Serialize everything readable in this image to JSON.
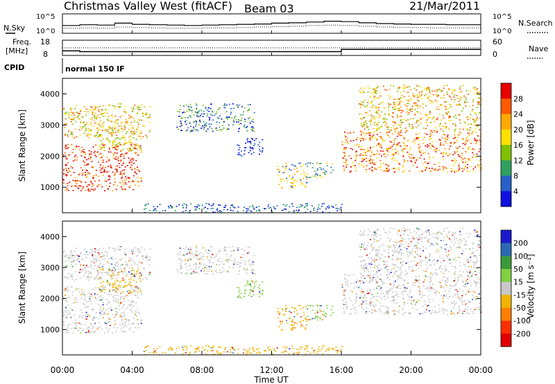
{
  "header": {
    "station": "Christmas Valley West (fitACF)",
    "beam": "Beam 03",
    "date": "21/Mar/2011"
  },
  "labels": {
    "nsky": "N.Sky",
    "nsearch": "N.Search",
    "freq": "Freq.",
    "freq_unit": "[MHz]",
    "nave": "Nave",
    "cpid": "CPID",
    "cpid_value": "normal 150 IF",
    "ylabel": "Slant Range [km]",
    "xlabel": "Time UT",
    "power_label": "Power [dB]",
    "velocity_label": "Velocity [m s⁻¹]"
  },
  "chart_data": [
    {
      "type": "line",
      "name": "noise",
      "left_ticks": [
        "10^5",
        "10^0"
      ],
      "right_ticks": [
        "10^5",
        "10^0"
      ],
      "series": [
        {
          "name": "N.Sky",
          "style": "solid",
          "values_log10": [
            2.0,
            2.2,
            2.1,
            2.6,
            2.3,
            2.2,
            2.1,
            2.0,
            2.1,
            2.2,
            2.3,
            2.4,
            2.6,
            2.7,
            2.9,
            3.1,
            3.0,
            2.7,
            2.5,
            2.4,
            2.3,
            2.3,
            2.2,
            2.2
          ]
        },
        {
          "name": "N.Search",
          "style": "dotted",
          "values_log10": [
            1.3,
            1.4,
            1.3,
            1.6,
            1.5,
            1.4,
            1.3,
            1.3,
            1.4,
            1.4,
            1.5,
            1.6,
            1.7,
            1.8,
            2.0,
            2.1,
            2.0,
            1.8,
            1.6,
            1.5,
            1.5,
            1.4,
            1.4,
            1.4
          ]
        }
      ]
    },
    {
      "type": "line",
      "name": "frequency",
      "left_ticks": [
        "18",
        "8"
      ],
      "right_ticks": [
        "60",
        "0"
      ],
      "steps": [
        {
          "from": "00:00",
          "to": "01:00",
          "freq_mhz": 11
        },
        {
          "from": "01:00",
          "to": "16:00",
          "freq_mhz": 10.5
        },
        {
          "from": "16:00",
          "to": "24:00",
          "freq_mhz": 12
        }
      ],
      "nave_approx": 30
    },
    {
      "type": "heatmap",
      "name": "power",
      "ylim": [
        180,
        4500
      ],
      "yticks": [
        1000,
        2000,
        3000,
        4000
      ],
      "colorbar_ticks": [
        "28",
        "24",
        "20",
        "16",
        "12",
        "8",
        "4"
      ],
      "colors": [
        "#e60000",
        "#ff5a00",
        "#ffaa00",
        "#ffe000",
        "#80c000",
        "#30a060",
        "#2860c8",
        "#1010e0"
      ]
    },
    {
      "type": "heatmap",
      "name": "velocity",
      "ylim": [
        180,
        4500
      ],
      "yticks": [
        1000,
        2000,
        3000,
        4000
      ],
      "colorbar_ticks": [
        "200",
        "100",
        "50",
        "15",
        "-15",
        "-50",
        "-100",
        "-200"
      ],
      "colors": [
        "#1a1acc",
        "#2a6ab4",
        "#3a9a3a",
        "#80d040",
        "#c8c8c8",
        "#f0b400",
        "#ff8000",
        "#ff3000",
        "#e00000"
      ]
    }
  ],
  "xaxis": {
    "ticks": [
      "00:00",
      "04:00",
      "08:00",
      "12:00",
      "16:00",
      "20:00",
      "00:00"
    ]
  },
  "colors": {
    "grey_scatter": "#c8c8c8"
  }
}
